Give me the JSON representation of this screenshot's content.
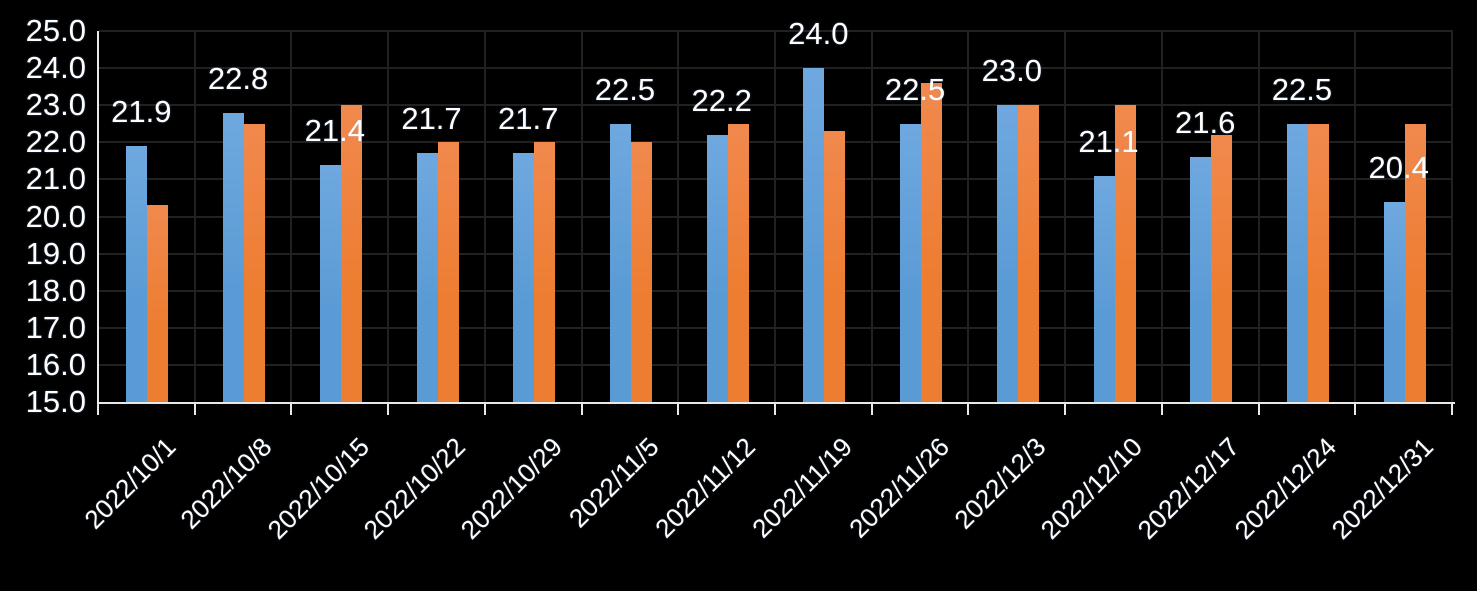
{
  "chart_data": {
    "type": "bar",
    "title": "",
    "xlabel": "",
    "ylabel": "",
    "categories": [
      "2022/10/1",
      "2022/10/8",
      "2022/10/15",
      "2022/10/22",
      "2022/10/29",
      "2022/11/5",
      "2022/11/12",
      "2022/11/19",
      "2022/11/26",
      "2022/12/3",
      "2022/12/10",
      "2022/12/17",
      "2022/12/24",
      "2022/12/31"
    ],
    "series": [
      {
        "name": "series-1-blue",
        "color": "#5B9BD5",
        "color_light": "#6FA8DF",
        "values": [
          21.9,
          22.8,
          21.4,
          21.7,
          21.7,
          22.5,
          22.2,
          24.0,
          22.5,
          23.0,
          21.1,
          21.6,
          22.5,
          20.4
        ],
        "data_labels": [
          "21.9",
          "22.8",
          "21.4",
          "21.7",
          "21.7",
          "22.5",
          "22.2",
          "24.0",
          "22.5",
          "23.0",
          "21.1",
          "21.6",
          "22.5",
          "20.4"
        ]
      },
      {
        "name": "series-2-orange",
        "color": "#ED7D31",
        "color_light": "#F1894E",
        "values": [
          20.3,
          22.5,
          23.0,
          22.0,
          22.0,
          22.0,
          22.5,
          22.3,
          23.6,
          23.0,
          23.0,
          22.2,
          22.5,
          22.5
        ],
        "data_labels": []
      }
    ],
    "ylim": [
      15.0,
      25.0
    ],
    "ytick_labels": [
      "25.0",
      "24.0",
      "23.0",
      "22.0",
      "21.0",
      "20.0",
      "19.0",
      "18.0",
      "17.0",
      "16.0",
      "15.0"
    ],
    "ytick_values": [
      25,
      24,
      23,
      22,
      21,
      20,
      19,
      18,
      17,
      16,
      15
    ],
    "grid": true,
    "legend": false,
    "background_color": "#000000",
    "gridline_color": "#212121",
    "axis_line_color": "#E8E8E8",
    "text_color": "#FFFFFF"
  }
}
